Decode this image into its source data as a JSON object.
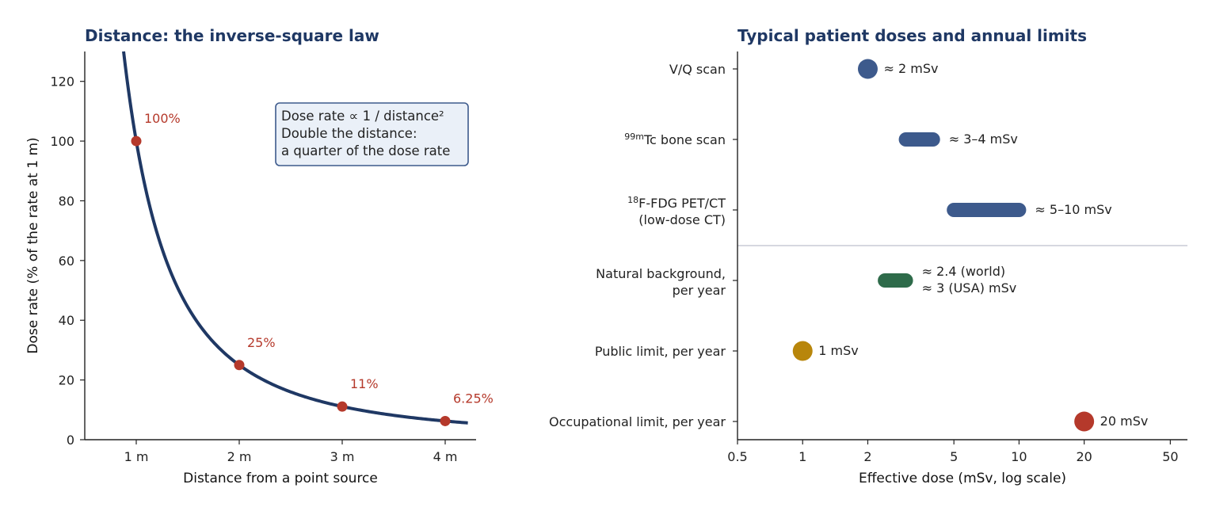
{
  "colors": {
    "title": "#1f3864",
    "curve": "#1f3864",
    "point": "#b5392b",
    "navy_marker": "#3d5a8c",
    "green_marker": "#2e6b4a",
    "gold_marker": "#b8860b",
    "red_marker": "#b5392b",
    "box_fill": "#eaf0f8",
    "box_edge": "#3d5a8c",
    "divider": "#c9ccd6"
  },
  "chart_data": [
    {
      "type": "line",
      "title": "Distance: the inverse-square law",
      "xlabel": "Distance from a point source",
      "ylabel": "Dose rate (% of the rate at 1 m)",
      "xlim": [
        0.5,
        4.3
      ],
      "ylim": [
        0,
        130
      ],
      "x_ticks": [
        {
          "v": 1,
          "label": "1 m"
        },
        {
          "v": 2,
          "label": "2 m"
        },
        {
          "v": 3,
          "label": "3 m"
        },
        {
          "v": 4,
          "label": "4 m"
        }
      ],
      "y_ticks": [
        0,
        20,
        40,
        60,
        80,
        100,
        120
      ],
      "curve": {
        "formula": "100/x^2",
        "x_start": 0.877,
        "x_end": 4.22
      },
      "points": [
        {
          "x": 1,
          "y": 100,
          "label": "100%"
        },
        {
          "x": 2,
          "y": 25,
          "label": "25%"
        },
        {
          "x": 3,
          "y": 11.1,
          "label": "11%"
        },
        {
          "x": 4,
          "y": 6.25,
          "label": "6.25%"
        }
      ],
      "annotation_box": [
        "Dose rate ∝ 1 / distance²",
        "Double the distance:",
        "a quarter of the dose rate"
      ]
    },
    {
      "type": "range-dot",
      "title": "Typical patient doses and annual limits",
      "xlabel": "Effective dose (mSv, log scale)",
      "x_scale": "log",
      "xlim": [
        0.5,
        60
      ],
      "x_ticks": [
        {
          "v": 0.5,
          "label": "0.5"
        },
        {
          "v": 1,
          "label": "1"
        },
        {
          "v": 2,
          "label": "2"
        },
        {
          "v": 5,
          "label": "5"
        },
        {
          "v": 10,
          "label": "10"
        },
        {
          "v": 20,
          "label": "20"
        },
        {
          "v": 50,
          "label": "50"
        }
      ],
      "rows": [
        {
          "label": [
            "V/Q scan"
          ],
          "low": 2,
          "high": 2,
          "note": [
            "≈ 2 mSv"
          ],
          "color": "navy_marker"
        },
        {
          "label_sup": "99m",
          "label_rest": "Tc bone scan",
          "low": 3,
          "high": 4,
          "note": [
            "≈ 3–4 mSv"
          ],
          "color": "navy_marker"
        },
        {
          "label_sup": "18",
          "label_rest": "F-FDG PET/CT",
          "label2": "(low-dose CT)",
          "low": 5,
          "high": 10,
          "note": [
            "≈ 5–10 mSv"
          ],
          "color": "navy_marker"
        },
        {
          "label": [
            "Natural background,",
            "per year"
          ],
          "low": 2.4,
          "high": 3,
          "note": [
            "≈ 2.4 (world)",
            "≈ 3 (USA) mSv"
          ],
          "color": "green_marker"
        },
        {
          "label": [
            "Public limit, per year"
          ],
          "low": 1,
          "high": 1,
          "note": [
            "1 mSv"
          ],
          "color": "gold_marker"
        },
        {
          "label": [
            "Occupational limit, per year"
          ],
          "low": 20,
          "high": 20,
          "note": [
            "20 mSv"
          ],
          "color": "red_marker"
        }
      ]
    }
  ]
}
